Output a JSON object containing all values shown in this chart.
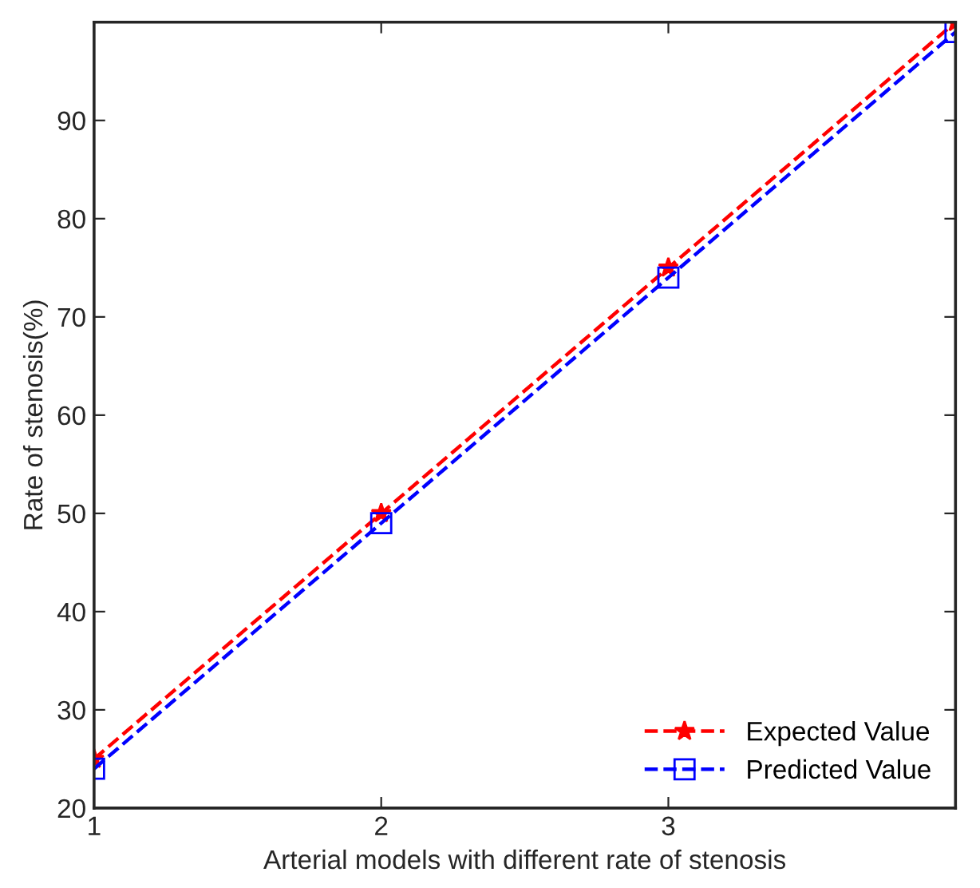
{
  "chart_data": {
    "type": "line",
    "xlabel": "Arterial models with different rate of stenosis",
    "ylabel": "Rate of stenosis(%)",
    "x": [
      1,
      2,
      3,
      4
    ],
    "series": [
      {
        "name": "Expected Value",
        "color": "#ff0000",
        "values": [
          25,
          50,
          75,
          100
        ],
        "marker": "star"
      },
      {
        "name": "Predicted Value",
        "color": "#0000ff",
        "values": [
          24,
          49,
          74,
          99
        ],
        "marker": "square"
      }
    ],
    "xlim": [
      1,
      4
    ],
    "xticks": [
      1,
      2,
      3
    ],
    "ylim": [
      20,
      100
    ],
    "yticks": [
      20,
      30,
      40,
      50,
      60,
      70,
      80,
      90
    ],
    "line_style": "dashed",
    "grid": false,
    "legend": "bottom right"
  }
}
